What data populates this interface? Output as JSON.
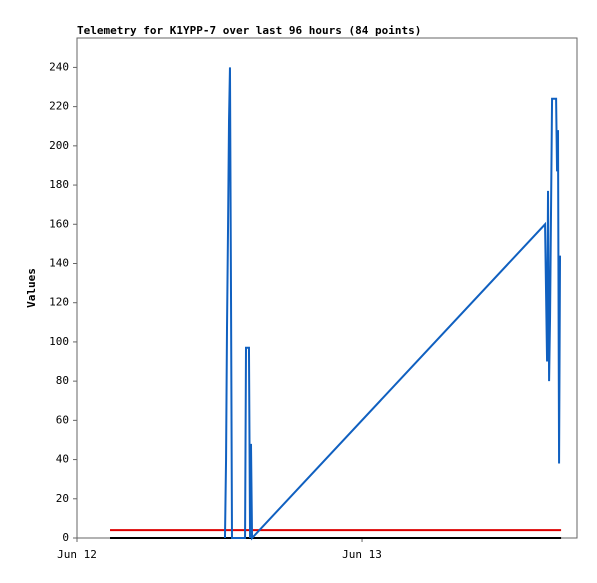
{
  "chart_data": {
    "type": "line",
    "title": "Telemetry for K1YPP-7 over last 96 hours (84 points)",
    "ylabel": "Values",
    "xlim": [
      0,
      42.1
    ],
    "xticks": [
      {
        "value": 0,
        "label": "Jun 12"
      },
      {
        "value": 24,
        "label": "Jun 13"
      }
    ],
    "ylim": [
      0,
      255
    ],
    "yticks": [
      0,
      20,
      40,
      60,
      80,
      100,
      120,
      140,
      160,
      180,
      200,
      220,
      240
    ],
    "series": [
      {
        "color": "#000000",
        "x": [
          2.78,
          40.76
        ],
        "values": [
          0,
          0
        ]
      },
      {
        "color": "#dd0000",
        "x": [
          2.78,
          40.76
        ],
        "values": [
          4,
          4
        ]
      },
      {
        "color": "#1060c0",
        "x": [
          12.46,
          12.55,
          12.63,
          12.72,
          12.8,
          12.88,
          12.97,
          13.05,
          14.15,
          14.23,
          14.48,
          14.57,
          14.65,
          14.74,
          39.41,
          39.58,
          39.66,
          39.75,
          39.83,
          40.0,
          40.34,
          40.42,
          40.5,
          40.59,
          40.67
        ],
        "values": [
          0,
          40,
          107,
          160,
          213,
          240,
          120,
          0,
          0,
          97,
          97,
          0,
          48,
          0,
          160,
          90,
          177,
          80,
          112,
          224,
          224,
          187,
          208,
          38,
          144
        ]
      }
    ]
  }
}
